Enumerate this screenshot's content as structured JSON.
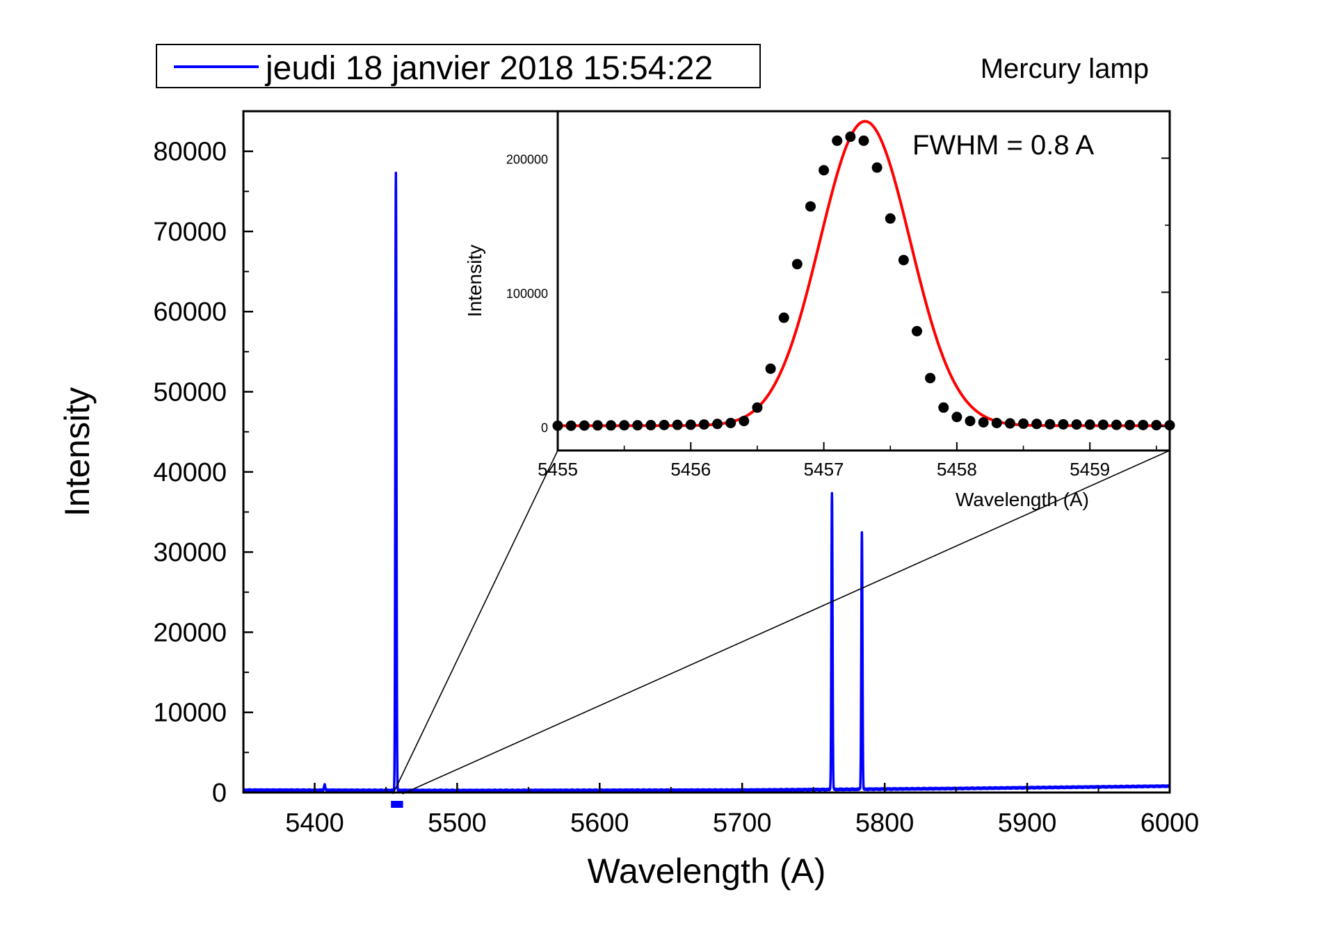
{
  "page": {
    "legend_label": "jeudi 18 janvier 2018 15:54:22",
    "annotation": "Mercury lamp"
  },
  "chart_data": [
    {
      "id": "main",
      "type": "line",
      "title": "",
      "xlabel": "Wavelength (A)",
      "ylabel": "Intensity",
      "xlim": [
        5350,
        6000
      ],
      "ylim": [
        0,
        85000
      ],
      "xticks": [
        5400,
        5500,
        5600,
        5700,
        5800,
        5900,
        6000
      ],
      "yticks": [
        0,
        10000,
        20000,
        30000,
        40000,
        50000,
        60000,
        70000,
        80000
      ],
      "legend": "top-left, outside plot",
      "series": [
        {
          "name": "jeudi 18 janvier 2018 15:54:22",
          "color": "#0000ff",
          "baseline": [
            [
              5350,
              300
            ],
            [
              5500,
              250
            ],
            [
              5700,
              300
            ],
            [
              5850,
              500
            ],
            [
              5950,
              700
            ],
            [
              6000,
              800
            ]
          ],
          "peaks": [
            {
              "center": 5407,
              "height": 700,
              "width": 1.0
            },
            {
              "center": 5457,
              "height": 77000,
              "width": 0.9
            },
            {
              "center": 5763,
              "height": 37000,
              "width": 0.9
            },
            {
              "center": 5784,
              "height": 32000,
              "width": 0.9
            }
          ]
        }
      ],
      "zoom_region": [
        5455,
        5459.6
      ]
    },
    {
      "id": "inset",
      "type": "scatter",
      "xlabel": "Wavelength (A)",
      "ylabel": "Intensity",
      "xlim": [
        5455,
        5459.6
      ],
      "ylim": [
        -18000,
        235000
      ],
      "xticks": [
        5455,
        5456,
        5457,
        5458,
        5459
      ],
      "yticks": [
        0,
        100000,
        200000
      ],
      "annotation": "FWHM = 0.8 A",
      "points": {
        "name": "data",
        "color": "#000000",
        "x": [
          5455.0,
          5455.1,
          5455.2,
          5455.3,
          5455.4,
          5455.5,
          5455.6,
          5455.7,
          5455.8,
          5455.9,
          5456.0,
          5456.1,
          5456.2,
          5456.3,
          5456.4,
          5456.5,
          5456.6,
          5456.7,
          5456.8,
          5456.9,
          5457.0,
          5457.1,
          5457.2,
          5457.3,
          5457.4,
          5457.5,
          5457.6,
          5457.7,
          5457.8,
          5457.9,
          5458.0,
          5458.1,
          5458.2,
          5458.3,
          5458.4,
          5458.5,
          5458.6,
          5458.7,
          5458.8,
          5458.9,
          5459.0,
          5459.1,
          5459.2,
          5459.3,
          5459.4,
          5459.5,
          5459.6
        ],
        "y": [
          500,
          500,
          600,
          700,
          700,
          800,
          800,
          900,
          1000,
          1100,
          1200,
          1400,
          1800,
          2500,
          4000,
          14000,
          43000,
          81000,
          121000,
          164000,
          191000,
          213000,
          216000,
          213000,
          193000,
          155000,
          124000,
          71000,
          36000,
          14000,
          7000,
          4000,
          3000,
          2500,
          2200,
          2000,
          1800,
          1600,
          1500,
          1400,
          1300,
          1200,
          1100,
          1000,
          1000,
          900,
          800
        ]
      },
      "fit": {
        "name": "Gaussian fit",
        "color": "#ff0000",
        "center": 5457.31,
        "amplitude": 227000,
        "fwhm": 0.8,
        "offset": 500
      }
    }
  ]
}
